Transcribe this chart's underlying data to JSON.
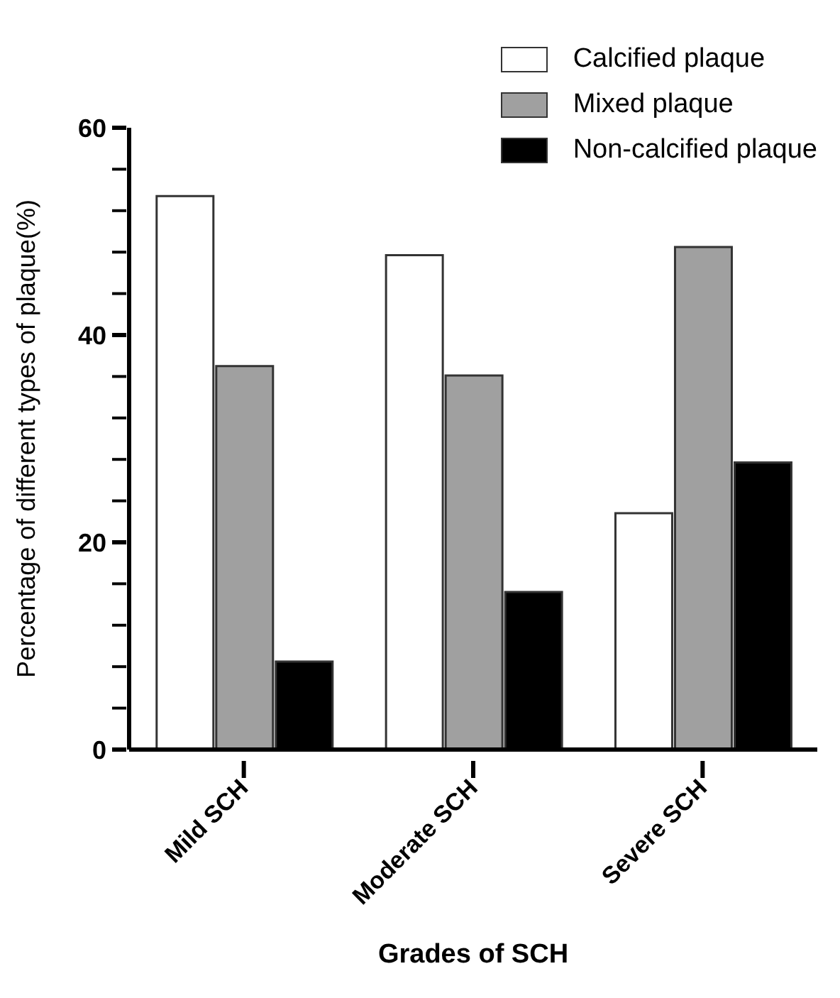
{
  "chart_data": {
    "type": "bar",
    "xlabel": "Grades of SCH",
    "ylabel": "Percentage of different types of plaque(%)",
    "categories": [
      "Mild SCH",
      "Moderate SCH",
      "Severe SCH"
    ],
    "series": [
      {
        "name": "Calcified plaque",
        "color": "#ffffff",
        "values": [
          53.4,
          47.7,
          22.8
        ]
      },
      {
        "name": "Mixed plaque",
        "color": "#a0a0a0",
        "values": [
          37.0,
          36.1,
          48.5
        ]
      },
      {
        "name": "Non-calcified plaque",
        "color": "#000000",
        "values": [
          8.5,
          15.2,
          27.7
        ]
      }
    ],
    "ylim": [
      0,
      60
    ],
    "yticks": [
      0,
      {
        "value": 4,
        "label": null
      },
      {
        "value": 8,
        "label": null
      },
      {
        "value": 12,
        "label": null
      },
      {
        "value": 16,
        "label": null
      },
      20,
      {
        "value": 24,
        "label": null
      },
      {
        "value": 28,
        "label": null
      },
      {
        "value": 32,
        "label": null
      },
      {
        "value": 36,
        "label": null
      },
      40,
      {
        "value": 44,
        "label": null
      },
      {
        "value": 48,
        "label": null
      },
      {
        "value": 52,
        "label": null
      },
      {
        "value": 56,
        "label": null
      },
      60
    ],
    "grid": false,
    "legend": "top right"
  }
}
